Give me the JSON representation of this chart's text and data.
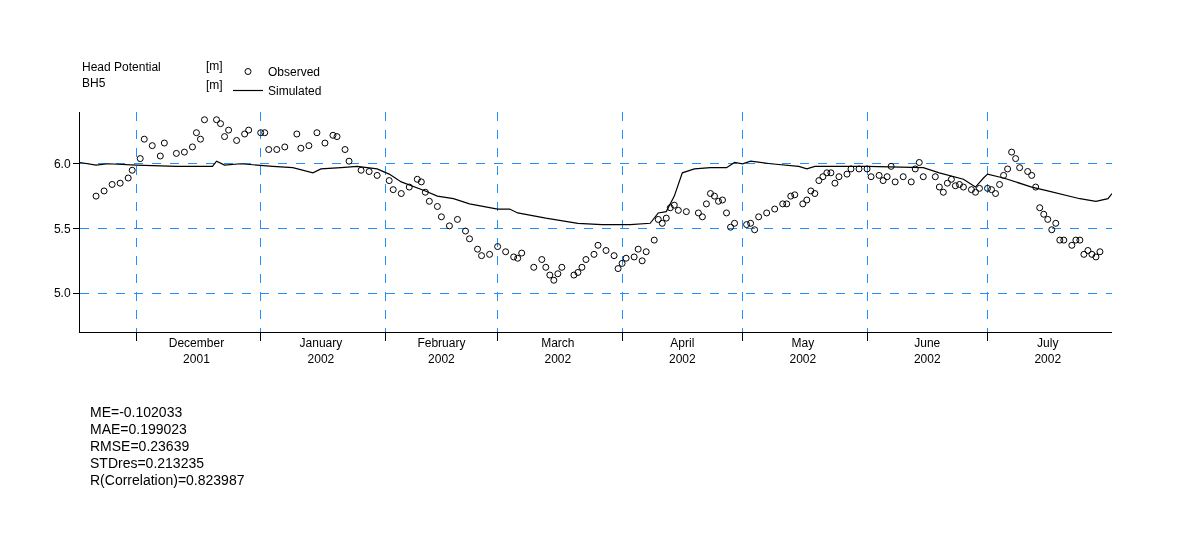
{
  "chart_data": {
    "type": "scatter",
    "legend_title": "Head Potential\nBH5",
    "xlim": [
      "2001-11-17",
      "2002-08-01"
    ],
    "xticks": [
      {
        "value": "2001-12-01",
        "label": null
      },
      {
        "value": "2001-12-16",
        "label": "December\n2001"
      },
      {
        "value": "2002-01-01",
        "label": null
      },
      {
        "value": "2002-01-16",
        "label": "January\n2002"
      },
      {
        "value": "2002-02-01",
        "label": null
      },
      {
        "value": "2002-02-15",
        "label": "February\n2002"
      },
      {
        "value": "2002-03-01",
        "label": null
      },
      {
        "value": "2002-03-16",
        "label": "March\n2002"
      },
      {
        "value": "2002-04-01",
        "label": null
      },
      {
        "value": "2002-04-16",
        "label": "April\n2002"
      },
      {
        "value": "2002-05-01",
        "label": null
      },
      {
        "value": "2002-05-16",
        "label": "May\n2002"
      },
      {
        "value": "2002-06-01",
        "label": null
      },
      {
        "value": "2002-06-16",
        "label": "June\n2002"
      },
      {
        "value": "2002-07-01",
        "label": null
      },
      {
        "value": "2002-07-16",
        "label": "July\n2002"
      }
    ],
    "ylim": [
      4.7,
      6.4
    ],
    "yticks": [
      {
        "value": 5.0,
        "label": "5.0"
      },
      {
        "value": 5.5,
        "label": "5.5"
      },
      {
        "value": 6.0,
        "label": "6.0"
      }
    ],
    "grid": true,
    "legend": "top left",
    "series": [
      {
        "name": "Observed",
        "marker": "circle",
        "color": "#000000",
        "x": [
          "2001-11-21",
          "2001-11-23",
          "2001-11-25",
          "2001-11-27",
          "2001-11-29",
          "2001-11-30",
          "2001-12-02",
          "2001-12-03",
          "2001-12-05",
          "2001-12-07",
          "2001-12-08",
          "2001-12-11",
          "2001-12-13",
          "2001-12-15",
          "2001-12-16",
          "2001-12-17",
          "2001-12-18",
          "2001-12-21",
          "2001-12-22",
          "2001-12-23",
          "2001-12-24",
          "2001-12-26",
          "2001-12-28",
          "2001-12-29",
          "2002-01-01",
          "2002-01-02",
          "2002-01-03",
          "2002-01-05",
          "2002-01-07",
          "2002-01-10",
          "2002-01-11",
          "2002-01-13",
          "2002-01-15",
          "2002-01-17",
          "2002-01-19",
          "2002-01-20",
          "2002-01-22",
          "2002-01-23",
          "2002-01-26",
          "2002-01-28",
          "2002-01-30",
          "2002-02-02",
          "2002-02-03",
          "2002-02-05",
          "2002-02-07",
          "2002-02-09",
          "2002-02-10",
          "2002-02-11",
          "2002-02-12",
          "2002-02-14",
          "2002-02-15",
          "2002-02-17",
          "2002-02-19",
          "2002-02-21",
          "2002-02-22",
          "2002-02-24",
          "2002-02-25",
          "2002-02-27",
          "2002-03-01",
          "2002-03-03",
          "2002-03-05",
          "2002-03-06",
          "2002-03-07",
          "2002-03-10",
          "2002-03-12",
          "2002-03-13",
          "2002-03-14",
          "2002-03-15",
          "2002-03-16",
          "2002-03-17",
          "2002-03-20",
          "2002-03-21",
          "2002-03-22",
          "2002-03-23",
          "2002-03-25",
          "2002-03-26",
          "2002-03-28",
          "2002-03-30",
          "2002-03-31",
          "2002-04-01",
          "2002-04-02",
          "2002-04-04",
          "2002-04-05",
          "2002-04-06",
          "2002-04-07",
          "2002-04-09",
          "2002-04-10",
          "2002-04-11",
          "2002-04-12",
          "2002-04-13",
          "2002-04-14",
          "2002-04-15",
          "2002-04-17",
          "2002-04-20",
          "2002-04-21",
          "2002-04-22",
          "2002-04-23",
          "2002-04-24",
          "2002-04-25",
          "2002-04-26",
          "2002-04-27",
          "2002-04-28",
          "2002-04-29",
          "2002-05-02",
          "2002-05-03",
          "2002-05-04",
          "2002-05-05",
          "2002-05-07",
          "2002-05-09",
          "2002-05-11",
          "2002-05-12",
          "2002-05-13",
          "2002-05-14",
          "2002-05-16",
          "2002-05-17",
          "2002-05-18",
          "2002-05-19",
          "2002-05-20",
          "2002-05-21",
          "2002-05-22",
          "2002-05-23",
          "2002-05-24",
          "2002-05-25",
          "2002-05-27",
          "2002-05-28",
          "2002-05-30",
          "2002-06-01",
          "2002-06-02",
          "2002-06-04",
          "2002-06-05",
          "2002-06-06",
          "2002-06-07",
          "2002-06-08",
          "2002-06-10",
          "2002-06-12",
          "2002-06-13",
          "2002-06-14",
          "2002-06-15",
          "2002-06-18",
          "2002-06-19",
          "2002-06-20",
          "2002-06-21",
          "2002-06-22",
          "2002-06-23",
          "2002-06-24",
          "2002-06-25",
          "2002-06-27",
          "2002-06-28",
          "2002-06-29",
          "2002-07-01",
          "2002-07-02",
          "2002-07-03",
          "2002-07-04",
          "2002-07-05",
          "2002-07-06",
          "2002-07-07",
          "2002-07-08",
          "2002-07-09",
          "2002-07-11",
          "2002-07-12",
          "2002-07-13",
          "2002-07-14",
          "2002-07-15",
          "2002-07-16",
          "2002-07-17",
          "2002-07-18",
          "2002-07-19",
          "2002-07-20",
          "2002-07-22",
          "2002-07-23",
          "2002-07-24",
          "2002-07-25",
          "2002-07-26",
          "2002-07-27",
          "2002-07-28",
          "2002-07-29"
        ],
        "values": [
          5.75,
          5.79,
          5.84,
          5.85,
          5.89,
          5.95,
          6.04,
          6.19,
          6.14,
          6.06,
          6.16,
          6.08,
          6.09,
          6.13,
          6.24,
          6.19,
          6.34,
          6.34,
          6.31,
          6.21,
          6.26,
          6.18,
          6.23,
          6.26,
          6.24,
          6.24,
          6.11,
          6.11,
          6.13,
          6.23,
          6.12,
          6.14,
          6.24,
          6.16,
          6.22,
          6.21,
          6.11,
          6.02,
          5.95,
          5.94,
          5.91,
          5.87,
          5.8,
          5.77,
          5.82,
          5.88,
          5.86,
          5.78,
          5.71,
          5.67,
          5.59,
          5.52,
          5.57,
          5.48,
          5.42,
          5.34,
          5.29,
          5.3,
          5.36,
          5.32,
          5.28,
          5.27,
          5.31,
          5.2,
          5.26,
          5.2,
          5.14,
          5.1,
          5.15,
          5.2,
          5.14,
          5.16,
          5.2,
          5.26,
          5.3,
          5.37,
          5.33,
          5.29,
          5.19,
          5.23,
          5.27,
          5.28,
          5.34,
          5.25,
          5.32,
          5.41,
          5.57,
          5.54,
          5.58,
          5.66,
          5.68,
          5.64,
          5.63,
          5.62,
          5.59,
          5.69,
          5.77,
          5.75,
          5.71,
          5.72,
          5.62,
          5.51,
          5.54,
          5.53,
          5.54,
          5.49,
          5.59,
          5.62,
          5.65,
          5.69,
          5.69,
          5.75,
          5.76,
          5.69,
          5.72,
          5.79,
          5.77,
          5.87,
          5.9,
          5.93,
          5.93,
          5.85,
          5.9,
          5.92,
          5.96,
          5.96,
          5.96,
          5.9,
          5.91,
          5.87,
          5.9,
          5.98,
          5.86,
          5.9,
          5.86,
          5.96,
          6.01,
          5.9,
          5.9,
          5.82,
          5.78,
          5.85,
          5.88,
          5.83,
          5.84,
          5.82,
          5.8,
          5.78,
          5.81,
          5.81,
          5.8,
          5.77,
          5.84,
          5.91,
          5.96,
          6.09,
          6.04,
          5.97,
          5.94,
          5.91,
          5.82,
          5.66,
          5.61,
          5.57,
          5.49,
          5.54,
          5.41,
          5.41,
          5.37,
          5.41,
          5.41,
          5.3,
          5.33,
          5.3,
          5.28,
          5.32
        ]
      },
      {
        "name": "Simulated",
        "type": "line",
        "marker": "none",
        "line_style": "solid",
        "color": "#000000",
        "x": [
          "2001-11-17",
          "2001-11-21",
          "2001-11-24",
          "2001-12-01",
          "2001-12-11",
          "2001-12-20",
          "2001-12-21",
          "2001-12-23",
          "2001-12-27",
          "2002-01-04",
          "2002-01-09",
          "2002-01-14",
          "2002-01-16",
          "2002-01-21",
          "2002-01-25",
          "2002-01-30",
          "2002-02-02",
          "2002-02-05",
          "2002-02-11",
          "2002-02-14",
          "2002-02-18",
          "2002-02-22",
          "2002-03-01",
          "2002-03-04",
          "2002-03-06",
          "2002-03-13",
          "2002-03-21",
          "2002-03-27",
          "2002-04-03",
          "2002-04-08",
          "2002-04-10",
          "2002-04-12",
          "2002-04-14",
          "2002-04-16",
          "2002-04-19",
          "2002-04-23",
          "2002-04-27",
          "2002-04-29",
          "2002-05-01",
          "2002-05-03",
          "2002-05-08",
          "2002-05-15",
          "2002-05-17",
          "2002-05-19",
          "2002-06-01",
          "2002-06-15",
          "2002-06-19",
          "2002-06-25",
          "2002-06-28",
          "2002-06-30",
          "2002-07-01",
          "2002-07-05",
          "2002-07-12",
          "2002-07-16",
          "2002-07-24",
          "2002-07-28",
          "2002-07-31",
          "2002-08-01"
        ],
        "values": [
          6.01,
          5.99,
          6.0,
          5.99,
          5.98,
          5.98,
          6.02,
          5.99,
          6.0,
          5.98,
          5.97,
          5.93,
          5.96,
          5.97,
          5.98,
          5.96,
          5.92,
          5.86,
          5.79,
          5.75,
          5.73,
          5.69,
          5.65,
          5.65,
          5.62,
          5.58,
          5.54,
          5.53,
          5.53,
          5.54,
          5.62,
          5.63,
          5.75,
          5.93,
          5.96,
          5.97,
          5.97,
          6.01,
          6.0,
          6.02,
          6.0,
          5.98,
          5.96,
          5.98,
          5.98,
          5.97,
          5.93,
          5.88,
          5.82,
          5.89,
          5.92,
          5.89,
          5.82,
          5.79,
          5.73,
          5.71,
          5.73,
          5.77
        ]
      }
    ],
    "annotations": [
      "[m]",
      "[m]",
      "ME=-0.102033",
      "MAE=0.199023",
      "RMSE=0.23639",
      "STDres=0.213235",
      "R(Correlation)=0.823987"
    ]
  }
}
